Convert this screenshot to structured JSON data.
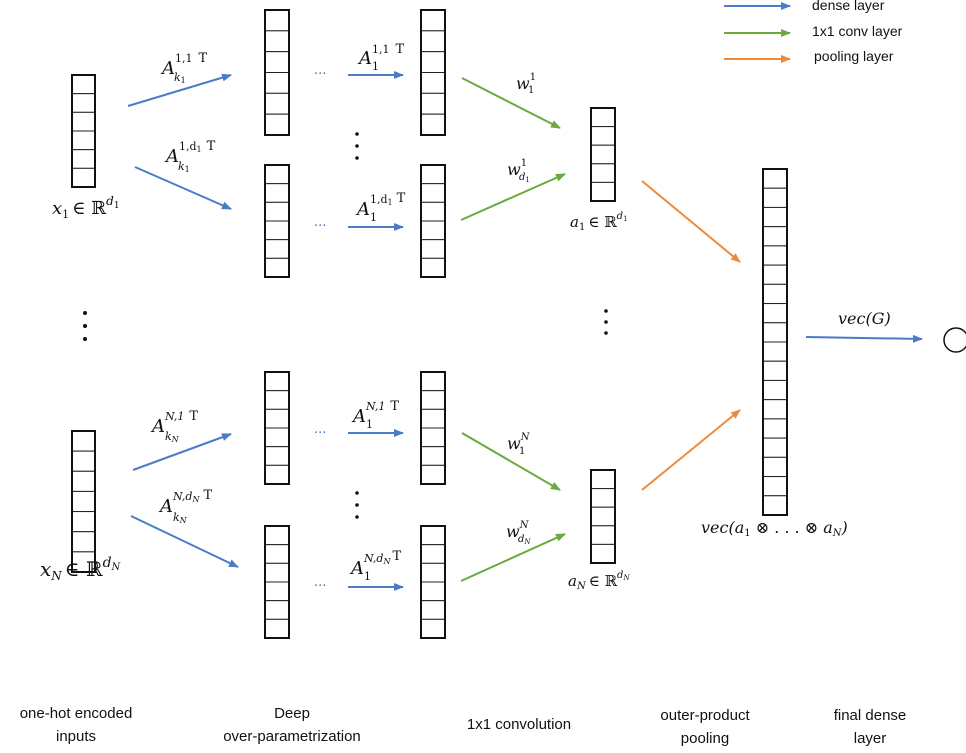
{
  "colors": {
    "dense": "#4a7cc9",
    "conv": "#6aaa3d",
    "pool": "#ee8a3a",
    "box": "#111111"
  },
  "legend": {
    "dense": "dense layer",
    "conv": "1x1 conv layer",
    "pool": "pooling layer"
  },
  "stage_labels": {
    "inputs_line1": "one-hot encoded",
    "inputs_line2": "inputs",
    "deep_line1": "Deep",
    "deep_line2": "over-parametrization",
    "conv": "1x1 convolution",
    "pool_line1": "outer-product",
    "pool_line2": "pooling",
    "final_line1": "final dense",
    "final_line2": "layer"
  },
  "math": {
    "x1": "x",
    "x1_sub": "1",
    "in": "∈ ℝ",
    "x1_sup": "d",
    "x1_supsub": "1",
    "xN": "x",
    "xN_sub": "N",
    "xN_sup": "d",
    "xN_supsub": "N",
    "A": "A",
    "T": "T",
    "A11_sup": "1,1",
    "A11_sub": "k",
    "A11_subsub": "1",
    "A1d_sup": "1,d",
    "A1d_supsub": "1",
    "A1d_sub": "k",
    "A1d_subsub": "1",
    "AN1_sup": "N,1",
    "AN1_sub": "k",
    "AN1_subsub": "N",
    "ANd_sup": "N,d",
    "ANd_supsub": "N",
    "ANd_sub": "k",
    "ANd_subsub": "N",
    "B11_sup": "1,1",
    "B_sub": "1",
    "B1d_sup": "1,d",
    "B1d_supsub": "1",
    "BN1_sup": "N,1",
    "BNd_sup": "N,d",
    "BNd_supsub": "N",
    "w": "w",
    "w11_sup": "1",
    "w11_sub": "1",
    "w1d_sup": "1",
    "w1d_sub": "d",
    "w1d_subsub": "1",
    "wN1_sup": "N",
    "wN1_sub": "1",
    "wNd_sup": "N",
    "wNd_sub": "d",
    "wNd_subsub": "N",
    "a1": "a",
    "a1_sub": "1",
    "a1_sup": "d",
    "a1_supsub": "1",
    "aN": "a",
    "aN_sub": "N",
    "aN_sup": "d",
    "aN_supsub": "N",
    "vecG": "vec(G)",
    "vec_pre": "vec(a",
    "vec_s1": "1",
    "vec_mid": " ⊗ . . . ⊗ a",
    "vec_sN": "N",
    "vec_end": ")",
    "ellipsis": "···"
  }
}
